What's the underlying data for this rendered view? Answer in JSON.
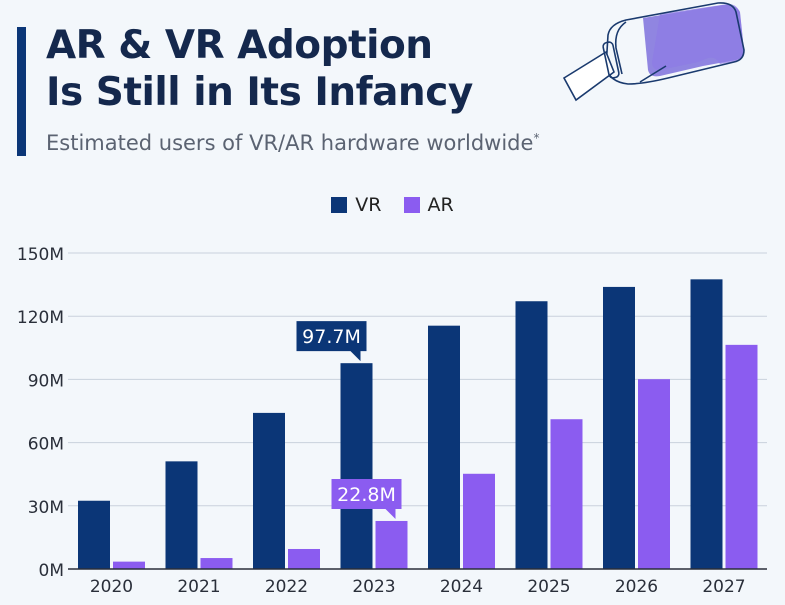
{
  "header": {
    "title_line1": "AR & VR Adoption",
    "title_line2": "Is Still in Its Infancy",
    "subtitle": "Estimated users of VR/AR hardware worldwide",
    "subtitle_mark": "*"
  },
  "illustration": "vr-headset-icon",
  "chart_data": {
    "type": "bar",
    "title": "AR & VR Adoption Is Still in Its Infancy",
    "subtitle": "Estimated users of VR/AR hardware worldwide*",
    "xlabel": "",
    "ylabel": "",
    "categories": [
      "2020",
      "2021",
      "2022",
      "2023",
      "2024",
      "2025",
      "2026",
      "2027"
    ],
    "series": [
      {
        "name": "VR",
        "color": "#0b3677",
        "values": [
          32.4,
          51.1,
          74.1,
          97.7,
          115.5,
          127.1,
          133.9,
          137.5
        ]
      },
      {
        "name": "AR",
        "color": "#8b5cf0",
        "values": [
          3.5,
          5.2,
          9.5,
          22.8,
          45.2,
          71.1,
          90.1,
          106.4
        ]
      }
    ],
    "ylim": [
      0,
      150
    ],
    "yticks": [
      0,
      30,
      60,
      90,
      120,
      150
    ],
    "ytick_labels": [
      "0M",
      "30M",
      "60M",
      "90M",
      "120M",
      "150M"
    ],
    "grid": true,
    "legend_position": "top-center",
    "annotations": [
      {
        "series": "VR",
        "category": "2023",
        "text": "97.7M"
      },
      {
        "series": "AR",
        "category": "2023",
        "text": "22.8M"
      }
    ]
  }
}
